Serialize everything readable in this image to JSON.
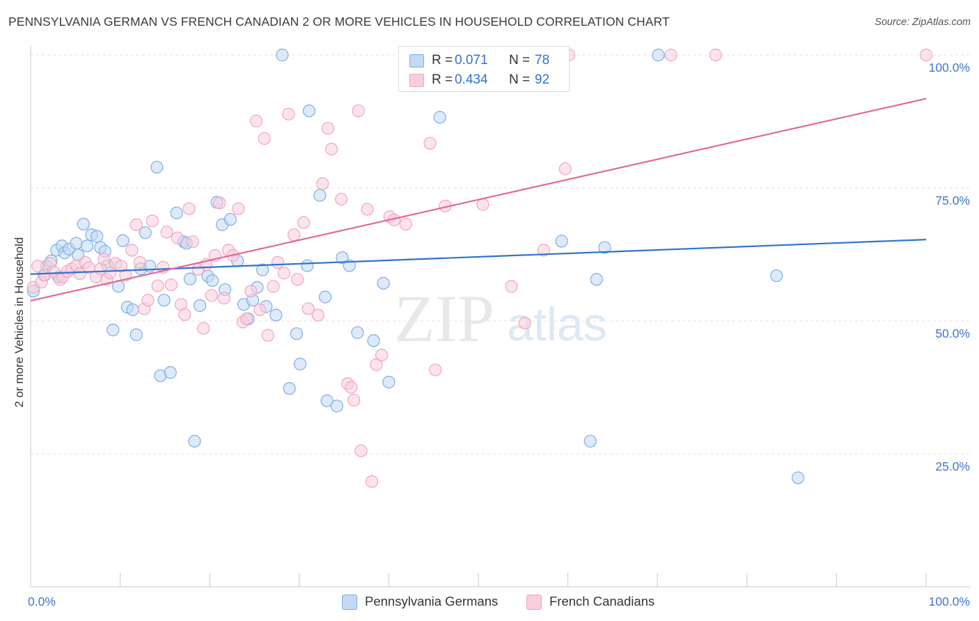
{
  "title": "PENNSYLVANIA GERMAN VS FRENCH CANADIAN 2 OR MORE VEHICLES IN HOUSEHOLD CORRELATION CHART",
  "source": "Source: ZipAtlas.com",
  "watermark": {
    "zip": "ZIP",
    "atlas": "atlas"
  },
  "legend_top": [
    {
      "r_label": "R =",
      "r_value": "0.071",
      "n_label": "N =",
      "n_value": "78"
    },
    {
      "r_label": "R =",
      "r_value": "0.434",
      "n_label": "N =",
      "n_value": "92"
    }
  ],
  "chart_data": {
    "type": "scatter",
    "title": "PENNSYLVANIA GERMAN VS FRENCH CANADIAN 2 OR MORE VEHICLES IN HOUSEHOLD CORRELATION CHART",
    "xlabel": "",
    "ylabel": "2 or more Vehicles in Household",
    "xlim": [
      0,
      100
    ],
    "ylim": [
      0,
      100
    ],
    "x_ticks": [
      0,
      10,
      20,
      30,
      40,
      50,
      60,
      70,
      80,
      90,
      100
    ],
    "x_tick_labels": [
      {
        "value": 0,
        "label": "0.0%"
      },
      {
        "value": 100,
        "label": "100.0%"
      }
    ],
    "y_tick_labels": [
      {
        "value": 100,
        "label": "100.0%"
      },
      {
        "value": 75,
        "label": "75.0%"
      },
      {
        "value": 50,
        "label": "50.0%"
      },
      {
        "value": 25,
        "label": "25.0%"
      }
    ],
    "grid": true,
    "legend_placement": "top-center and bottom",
    "series": [
      {
        "name": "Pennsylvania Germans",
        "color": "#7aaee6",
        "fill": "#c3d9f4",
        "line_color": "#2f72cc",
        "r": 0.071,
        "n": 78,
        "trend": {
          "x0": 0,
          "y0": 58.8,
          "x1": 100,
          "y1": 65.3
        },
        "points": [
          [
            0.3,
            55.6
          ],
          [
            1.5,
            58.6
          ],
          [
            1.8,
            60.3
          ],
          [
            2.3,
            61.3
          ],
          [
            2.9,
            63.3
          ],
          [
            3.1,
            58.3
          ],
          [
            3.5,
            64.1
          ],
          [
            3.8,
            62.8
          ],
          [
            4.3,
            63.5
          ],
          [
            5.1,
            64.6
          ],
          [
            5.3,
            62.4
          ],
          [
            5.9,
            68.2
          ],
          [
            6.3,
            64.1
          ],
          [
            6.8,
            66.2
          ],
          [
            7.4,
            65.9
          ],
          [
            7.8,
            63.8
          ],
          [
            8.3,
            63.1
          ],
          [
            8.6,
            60.4
          ],
          [
            9.2,
            48.3
          ],
          [
            9.8,
            56.5
          ],
          [
            10.3,
            65.1
          ],
          [
            10.8,
            52.6
          ],
          [
            11.4,
            52.1
          ],
          [
            11.8,
            47.4
          ],
          [
            12.3,
            59.8
          ],
          [
            12.8,
            66.6
          ],
          [
            13.3,
            60.3
          ],
          [
            14.1,
            78.9
          ],
          [
            14.5,
            39.7
          ],
          [
            14.9,
            53.9
          ],
          [
            15.6,
            40.3
          ],
          [
            16.3,
            70.3
          ],
          [
            17.1,
            64.9
          ],
          [
            17.4,
            64.6
          ],
          [
            17.8,
            57.9
          ],
          [
            18.3,
            27.4
          ],
          [
            18.9,
            52.9
          ],
          [
            19.8,
            58.4
          ],
          [
            20.3,
            57.6
          ],
          [
            20.8,
            72.3
          ],
          [
            21.4,
            68.1
          ],
          [
            21.7,
            55.9
          ],
          [
            22.3,
            69.1
          ],
          [
            23.1,
            61.3
          ],
          [
            23.8,
            53.1
          ],
          [
            24.3,
            50.4
          ],
          [
            24.8,
            53.9
          ],
          [
            25.3,
            56.3
          ],
          [
            25.9,
            59.6
          ],
          [
            26.3,
            52.7
          ],
          [
            27.4,
            51.1
          ],
          [
            28.1,
            100.0
          ],
          [
            28.9,
            37.3
          ],
          [
            29.7,
            47.6
          ],
          [
            30.1,
            41.9
          ],
          [
            30.9,
            60.4
          ],
          [
            31.1,
            89.5
          ],
          [
            32.3,
            73.6
          ],
          [
            32.9,
            54.5
          ],
          [
            33.1,
            35.0
          ],
          [
            34.2,
            34.0
          ],
          [
            34.8,
            61.9
          ],
          [
            35.6,
            60.4
          ],
          [
            36.5,
            47.8
          ],
          [
            38.3,
            46.3
          ],
          [
            39.4,
            57.1
          ],
          [
            40.0,
            38.5
          ],
          [
            45.7,
            88.3
          ],
          [
            47.1,
            100.0
          ],
          [
            49.2,
            100.0
          ],
          [
            55.6,
            100.0
          ],
          [
            59.3,
            65.0
          ],
          [
            62.5,
            27.4
          ],
          [
            63.2,
            57.8
          ],
          [
            64.1,
            63.8
          ],
          [
            70.1,
            100.0
          ],
          [
            83.3,
            58.5
          ],
          [
            85.7,
            20.5
          ]
        ]
      },
      {
        "name": "French Canadians",
        "color": "#f2a3be",
        "fill": "#f9cddd",
        "line_color": "#e0689a",
        "r": 0.434,
        "n": 92,
        "trend": {
          "x0": 0,
          "y0": 53.8,
          "x1": 100,
          "y1": 91.8
        },
        "points": [
          [
            0.3,
            56.3
          ],
          [
            0.8,
            60.3
          ],
          [
            1.2,
            57.3
          ],
          [
            1.6,
            58.6
          ],
          [
            2.2,
            60.8
          ],
          [
            2.6,
            59.2
          ],
          [
            3.3,
            57.8
          ],
          [
            3.6,
            58.3
          ],
          [
            4.1,
            59.3
          ],
          [
            4.6,
            59.8
          ],
          [
            5.1,
            60.4
          ],
          [
            5.5,
            58.9
          ],
          [
            6.1,
            61.0
          ],
          [
            6.5,
            60.0
          ],
          [
            7.3,
            58.3
          ],
          [
            7.8,
            59.8
          ],
          [
            8.2,
            61.6
          ],
          [
            8.5,
            57.8
          ],
          [
            8.9,
            59.0
          ],
          [
            9.5,
            60.8
          ],
          [
            10.1,
            60.3
          ],
          [
            10.6,
            58.6
          ],
          [
            11.3,
            63.3
          ],
          [
            11.8,
            68.1
          ],
          [
            12.2,
            61.0
          ],
          [
            12.7,
            52.3
          ],
          [
            13.1,
            53.9
          ],
          [
            13.6,
            68.8
          ],
          [
            14.2,
            56.6
          ],
          [
            14.8,
            60.1
          ],
          [
            15.2,
            66.7
          ],
          [
            15.7,
            56.8
          ],
          [
            16.4,
            65.6
          ],
          [
            16.8,
            53.1
          ],
          [
            17.2,
            51.2
          ],
          [
            17.7,
            71.1
          ],
          [
            18.1,
            64.9
          ],
          [
            18.7,
            59.7
          ],
          [
            19.3,
            48.6
          ],
          [
            19.6,
            60.6
          ],
          [
            20.2,
            54.8
          ],
          [
            20.6,
            62.3
          ],
          [
            21.1,
            72.2
          ],
          [
            21.6,
            54.3
          ],
          [
            22.1,
            63.3
          ],
          [
            22.6,
            62.3
          ],
          [
            23.2,
            71.1
          ],
          [
            23.7,
            49.8
          ],
          [
            24.1,
            50.4
          ],
          [
            24.6,
            55.6
          ],
          [
            25.2,
            87.6
          ],
          [
            25.6,
            52.1
          ],
          [
            26.1,
            84.3
          ],
          [
            26.5,
            47.3
          ],
          [
            27.1,
            56.5
          ],
          [
            27.6,
            61.0
          ],
          [
            28.3,
            59.0
          ],
          [
            28.8,
            88.9
          ],
          [
            29.4,
            66.2
          ],
          [
            29.8,
            57.8
          ],
          [
            30.5,
            68.5
          ],
          [
            31.0,
            52.3
          ],
          [
            32.1,
            51.1
          ],
          [
            32.6,
            75.8
          ],
          [
            33.2,
            86.2
          ],
          [
            33.6,
            82.3
          ],
          [
            34.7,
            72.9
          ],
          [
            35.4,
            38.2
          ],
          [
            35.8,
            37.5
          ],
          [
            36.1,
            35.1
          ],
          [
            36.6,
            89.5
          ],
          [
            36.9,
            25.6
          ],
          [
            37.6,
            71.0
          ],
          [
            38.1,
            19.8
          ],
          [
            38.6,
            41.8
          ],
          [
            39.2,
            43.6
          ],
          [
            40.1,
            69.6
          ],
          [
            40.6,
            69.0
          ],
          [
            41.9,
            68.2
          ],
          [
            42.9,
            100.0
          ],
          [
            44.6,
            83.4
          ],
          [
            45.2,
            40.8
          ],
          [
            46.3,
            71.6
          ],
          [
            50.5,
            71.9
          ],
          [
            53.7,
            56.5
          ],
          [
            55.2,
            49.6
          ],
          [
            57.3,
            63.3
          ],
          [
            59.7,
            78.6
          ],
          [
            60.1,
            100.0
          ],
          [
            71.5,
            100.0
          ],
          [
            76.5,
            100.0
          ],
          [
            100.0,
            100.0
          ]
        ]
      }
    ]
  }
}
